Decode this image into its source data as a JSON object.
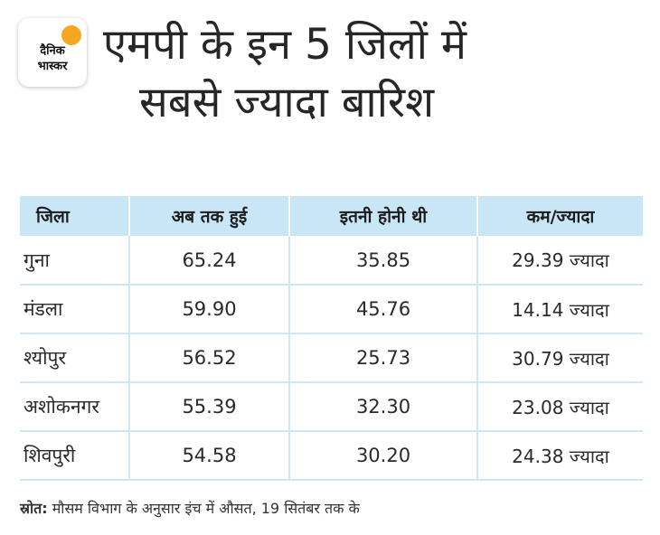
{
  "logo": {
    "line1": "दैनिक",
    "line2": "भास्कर",
    "sun_color": "#f5a623"
  },
  "title": {
    "line1": "एमपी के इन 5 जिलों में",
    "line2": "सबसे ज्यादा बारिश"
  },
  "table": {
    "header_bg": "#c9e6f7",
    "headers": [
      "जिला",
      "अब तक हुई",
      "इतनी होनी थी",
      "कम/ज्यादा"
    ],
    "rows": [
      {
        "district": "गुना",
        "received": "65.24",
        "expected": "35.85",
        "diff": "29.39 ज्यादा"
      },
      {
        "district": "मंडला",
        "received": "59.90",
        "expected": "45.76",
        "diff": "14.14 ज्यादा"
      },
      {
        "district": "श्योपुर",
        "received": "56.52",
        "expected": "25.73",
        "diff": "30.79 ज्यादा"
      },
      {
        "district": "अशोकनगर",
        "received": "55.39",
        "expected": "32.30",
        "diff": "23.08 ज्यादा"
      },
      {
        "district": "शिवपुरी",
        "received": "54.58",
        "expected": "30.20",
        "diff": "24.38 ज्यादा"
      }
    ]
  },
  "footer": {
    "label": "स्रोत:",
    "text": "मौसम विभाग के अनुसार इंच में औसत, 19 सितंबर तक के"
  }
}
